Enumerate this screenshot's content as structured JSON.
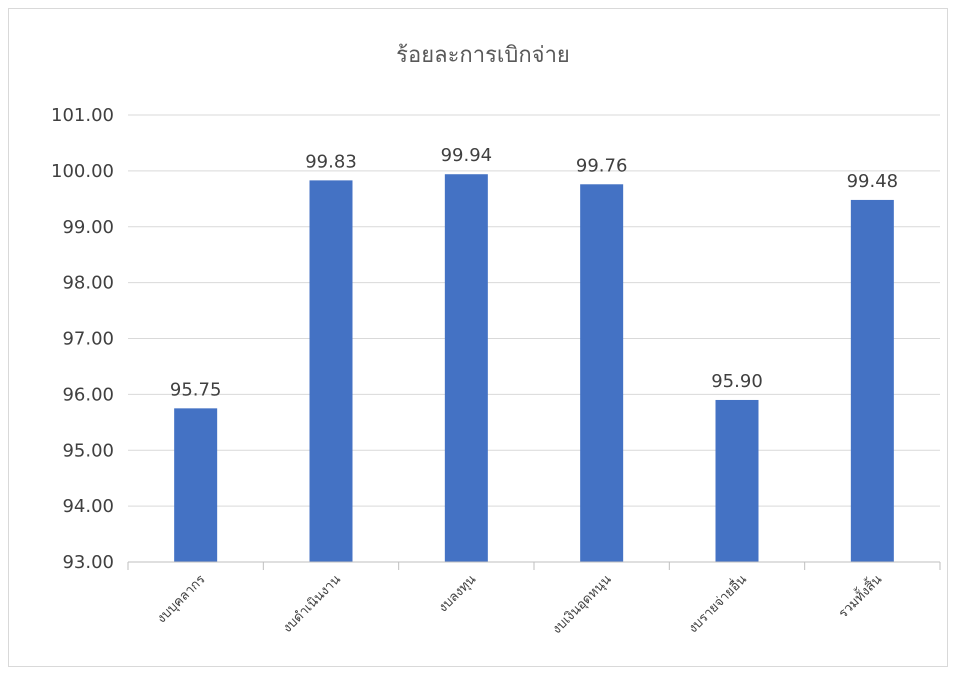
{
  "chart_data": {
    "type": "bar",
    "title": "ร้อยละการเบิกจ่าย",
    "categories": [
      "งบบุคลากร",
      "งบดำเนินงาน",
      "งบลงทุน",
      "งบเงินอุดหนุน",
      "งบรายจ่ายอื่น",
      "รวมทั้งสิ้น"
    ],
    "values": [
      95.75,
      99.83,
      99.94,
      99.76,
      95.9,
      99.48
    ],
    "data_labels": [
      "95.75",
      "99.83",
      "99.94",
      "99.76",
      "95.90",
      "99.48"
    ],
    "ylim": [
      93,
      101
    ],
    "yticks": [
      "93.00",
      "94.00",
      "95.00",
      "96.00",
      "97.00",
      "98.00",
      "99.00",
      "100.00",
      "101.00"
    ],
    "grid": true,
    "legend": "none",
    "bar_color": "#4472C4",
    "grid_color": "#d9d9d9"
  }
}
